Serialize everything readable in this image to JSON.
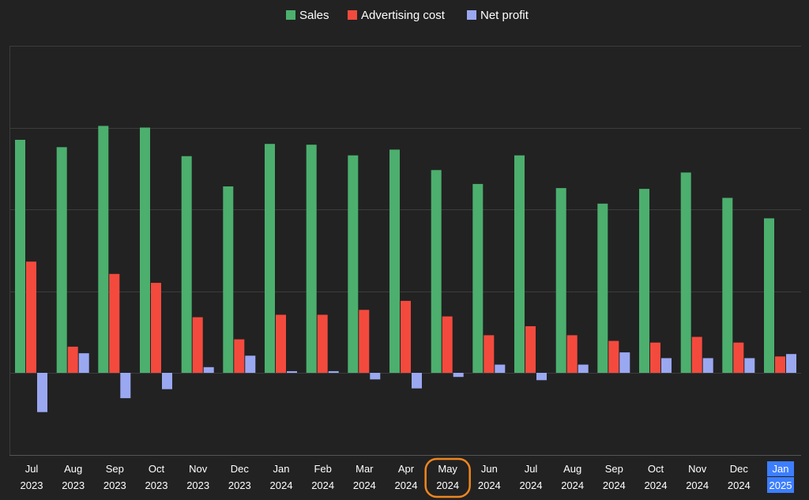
{
  "chart_data": {
    "type": "bar",
    "categories": [
      [
        "Jul",
        "2023"
      ],
      [
        "Aug",
        "2023"
      ],
      [
        "Sep",
        "2023"
      ],
      [
        "Oct",
        "2023"
      ],
      [
        "Nov",
        "2023"
      ],
      [
        "Dec",
        "2023"
      ],
      [
        "Jan",
        "2024"
      ],
      [
        "Feb",
        "2024"
      ],
      [
        "Mar",
        "2024"
      ],
      [
        "Apr",
        "2024"
      ],
      [
        "May",
        "2024"
      ],
      [
        "Jun",
        "2024"
      ],
      [
        "Jul",
        "2024"
      ],
      [
        "Aug",
        "2024"
      ],
      [
        "Sep",
        "2024"
      ],
      [
        "Oct",
        "2024"
      ],
      [
        "Nov",
        "2024"
      ],
      [
        "Dec",
        "2024"
      ],
      [
        "Jan",
        "2025"
      ]
    ],
    "series": [
      {
        "name": "Sales",
        "color": "#4caf6e",
        "values": [
          285,
          276,
          302,
          300,
          265,
          228,
          280,
          279,
          266,
          273,
          248,
          231,
          266,
          226,
          207,
          225,
          245,
          214,
          189
        ]
      },
      {
        "name": "Advertising cost",
        "color": "#f44a3e",
        "values": [
          136,
          32,
          121,
          110,
          68,
          41,
          71,
          71,
          77,
          88,
          69,
          46,
          57,
          46,
          39,
          37,
          44,
          37,
          20
        ]
      },
      {
        "name": "Net profit",
        "color": "#9aa8f2",
        "values": [
          -48,
          24,
          -31,
          -20,
          7,
          21,
          2,
          2,
          -8,
          -19,
          -5,
          10,
          -9,
          10,
          25,
          18,
          18,
          18,
          23
        ]
      }
    ],
    "ylim": [
      -100,
      400
    ],
    "grid": true,
    "legend_position": "top-center",
    "highlighted_categories": {
      "circled": [
        "May",
        "2024"
      ],
      "selected": [
        "Jan",
        "2025"
      ]
    },
    "highlight_colors": {
      "circle": "#f0861f",
      "selection": "#3d7eff"
    }
  }
}
